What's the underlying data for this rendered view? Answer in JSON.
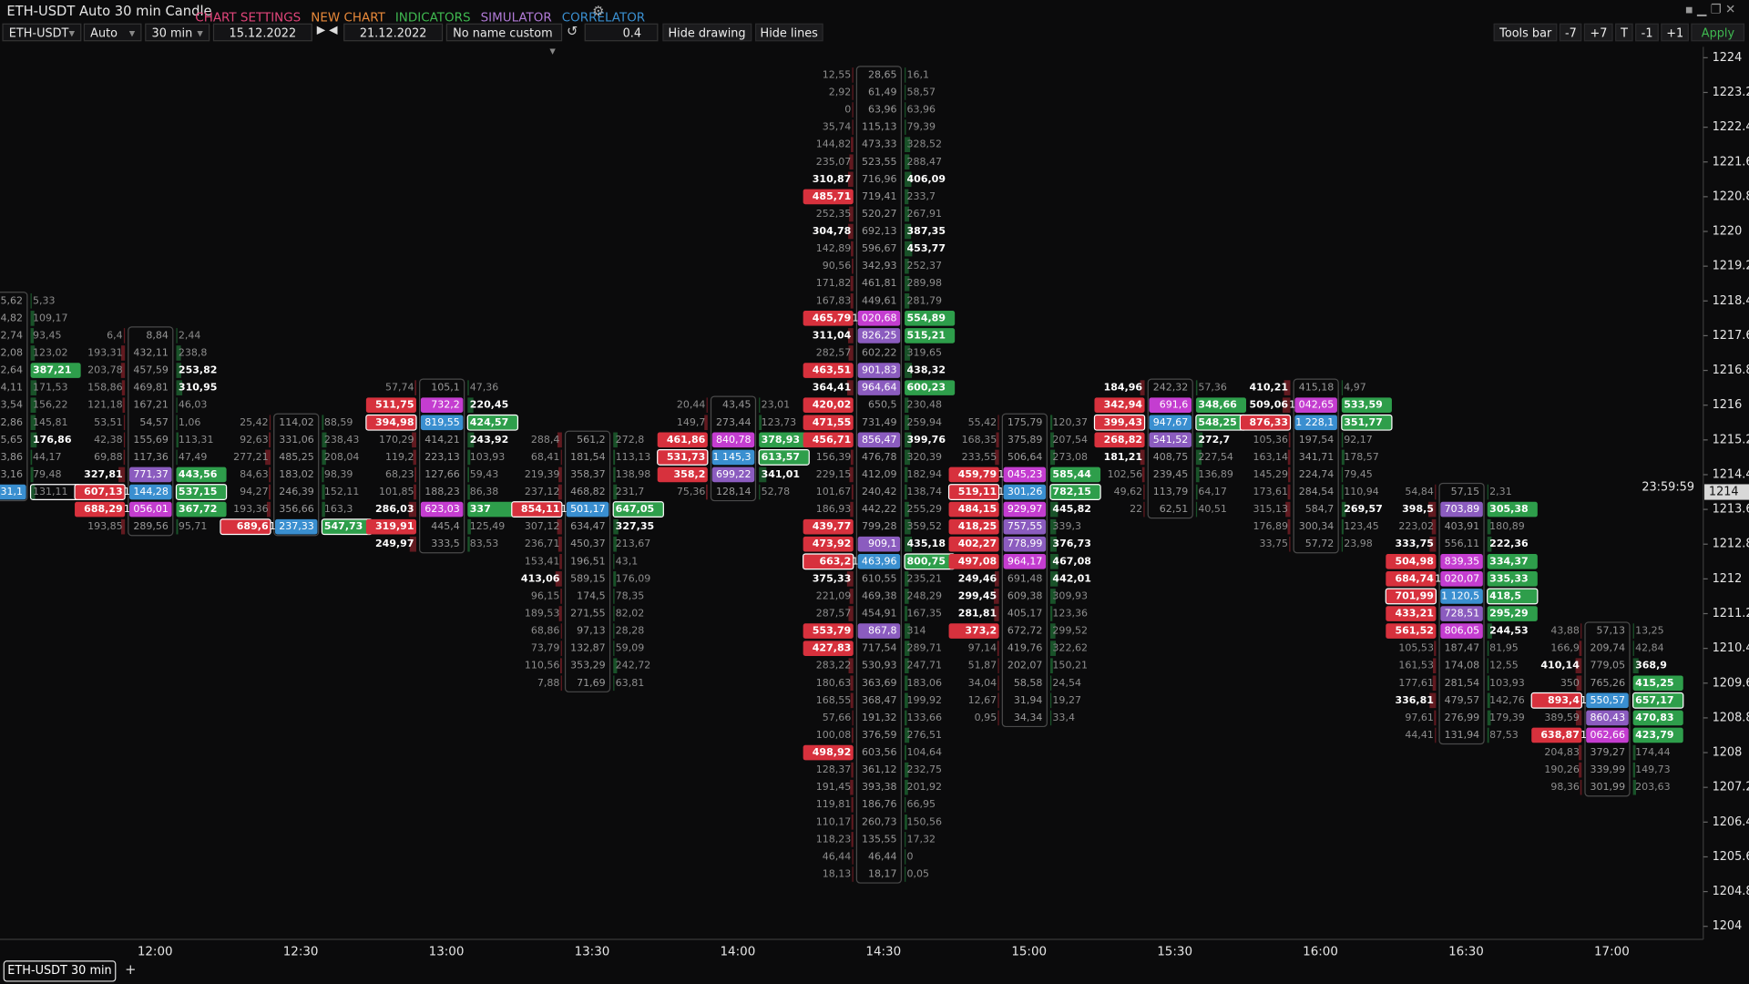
{
  "header": {
    "title": "ETH-USDT Auto 30 min Candle",
    "menu": [
      "CHART SETTINGS",
      "NEW CHART",
      "INDICATORS",
      "SIMULATOR",
      "CORRELATOR"
    ]
  },
  "toolbar": {
    "symbol": "ETH-USDT",
    "scale": "Auto",
    "period": "30 min",
    "from": "15.12.2022",
    "to": "21.12.2022",
    "template": "No name custom",
    "tick": 0.4,
    "buttons": [
      "Hide drawing",
      "Hide lines"
    ],
    "right_buttons": [
      "Tools bar",
      "-7",
      "+7",
      "T",
      "-1",
      "+1",
      "Apply"
    ]
  },
  "chart": {
    "ylim": [
      1203.7,
      1224.25
    ],
    "yticks": [
      1224,
      1223.2,
      1222.4,
      1221.6,
      1220.8,
      1220,
      1219.2,
      1218.4,
      1217.6,
      1216.8,
      1216,
      1215.2,
      1214.4,
      1213.6,
      1212.8,
      1212,
      1211.2,
      1210.4,
      1209.6,
      1208.8,
      1208,
      1207.2,
      1206.4,
      1205.6,
      1204.8,
      1204
    ],
    "time_labels": [
      "12:00",
      "12:30",
      "13:00",
      "13:30",
      "14:00",
      "14:30",
      "15:00",
      "15:30",
      "16:00",
      "16:30",
      "17:00"
    ],
    "last_price": 1214,
    "countdown": "23:59:59",
    "clusters": [
      {
        "top": 1218.4,
        "rows": [
          [
            null,
            "5,62",
            "5,33"
          ],
          [
            null,
            "4,82",
            "109,17"
          ],
          [
            null,
            "2,74",
            "93,45"
          ],
          [
            null,
            "2,08",
            "123,02"
          ],
          [
            null,
            "2,64",
            "387,21"
          ],
          [
            null,
            "4,11",
            "171,53"
          ],
          [
            null,
            "3,54",
            "156,22"
          ],
          [
            null,
            "2,86",
            "145,81"
          ],
          [
            null,
            "5,65",
            "176,86"
          ],
          [
            null,
            "3,86",
            "44,17"
          ],
          [
            null,
            "3,16",
            "79,48"
          ],
          [
            null,
            "31,1",
            "131,11"
          ]
        ]
      },
      {
        "top": 1217.6,
        "rows": [
          [
            "6,4",
            "8,84",
            "2,44"
          ],
          [
            "193,31",
            "432,11",
            "238,8"
          ],
          [
            "203,78",
            "457,59",
            "253,82"
          ],
          [
            "158,86",
            "469,81",
            "310,95"
          ],
          [
            "121,18",
            "167,21",
            "46,03"
          ],
          [
            "53,51",
            "54,57",
            "1,06"
          ],
          [
            "42,38",
            "155,69",
            "113,31"
          ],
          [
            "69,88",
            "117,36",
            "47,49"
          ],
          [
            "327,81",
            "771,37",
            "443,56"
          ],
          [
            "607,13",
            "1 144,28",
            "537,15"
          ],
          [
            "688,29",
            "1 056,01",
            "367,72"
          ],
          [
            "193,85",
            "289,56",
            "95,71"
          ]
        ]
      },
      {
        "top": 1215.6,
        "rows": [
          [
            "25,42",
            "114,02",
            "88,59"
          ],
          [
            "92,63",
            "331,06",
            "238,43"
          ],
          [
            "277,21",
            "485,25",
            "208,04"
          ],
          [
            "84,63",
            "183,02",
            "98,39"
          ],
          [
            "94,27",
            "246,39",
            "152,11"
          ],
          [
            "193,36",
            "356,66",
            "163,3"
          ],
          [
            "689,6",
            "1 237,33",
            "547,73"
          ]
        ]
      },
      {
        "top": 1216.4,
        "rows": [
          [
            "57,74",
            "105,1",
            "47,36"
          ],
          [
            "511,75",
            "732,2",
            "220,45"
          ],
          [
            "394,98",
            "819,55",
            "424,57"
          ],
          [
            "170,29",
            "414,21",
            "243,92"
          ],
          [
            "119,2",
            "223,13",
            "103,93"
          ],
          [
            "68,23",
            "127,66",
            "59,43"
          ],
          [
            "101,85",
            "188,23",
            "86,38"
          ],
          [
            "286,03",
            "623,03",
            "337"
          ],
          [
            "319,91",
            "445,4",
            "125,49"
          ],
          [
            "249,97",
            "333,5",
            "83,53"
          ]
        ]
      },
      {
        "top": 1215.2,
        "rows": [
          [
            "288,4",
            "561,2",
            "272,8"
          ],
          [
            "68,41",
            "181,54",
            "113,13"
          ],
          [
            "219,39",
            "358,37",
            "138,98"
          ],
          [
            "237,12",
            "468,82",
            "231,7"
          ],
          [
            "854,11",
            "1 501,17",
            "647,05"
          ],
          [
            "307,12",
            "634,47",
            "327,35"
          ],
          [
            "236,71",
            "450,37",
            "213,67"
          ],
          [
            "153,41",
            "196,51",
            "43,1"
          ],
          [
            "413,06",
            "589,15",
            "176,09"
          ],
          [
            "96,15",
            "174,5",
            "78,35"
          ],
          [
            "189,53",
            "271,55",
            "82,02"
          ],
          [
            "68,86",
            "97,13",
            "28,28"
          ],
          [
            "73,79",
            "132,87",
            "59,09"
          ],
          [
            "110,56",
            "353,29",
            "242,72"
          ],
          [
            "7,88",
            "71,69",
            "63,81"
          ]
        ]
      },
      {
        "top": 1216,
        "rows": [
          [
            "20,44",
            "43,45",
            "23,01"
          ],
          [
            "149,7",
            "273,44",
            "123,73"
          ],
          [
            "461,86",
            "840,78",
            "378,93"
          ],
          [
            "531,73",
            "1 145,3",
            "613,57"
          ],
          [
            "358,2",
            "699,22",
            "341,01"
          ],
          [
            "75,36",
            "128,14",
            "52,78"
          ]
        ]
      },
      {
        "top": 1223.6,
        "rows": [
          [
            "12,55",
            "28,65",
            "16,1"
          ],
          [
            "2,92",
            "61,49",
            "58,57"
          ],
          [
            "0",
            "63,96",
            "63,96"
          ],
          [
            "35,74",
            "115,13",
            "79,39"
          ],
          [
            "144,82",
            "473,33",
            "328,52"
          ],
          [
            "235,07",
            "523,55",
            "288,47"
          ],
          [
            "310,87",
            "716,96",
            "406,09"
          ],
          [
            "485,71",
            "719,41",
            "233,7"
          ],
          [
            "252,35",
            "520,27",
            "267,91"
          ],
          [
            "304,78",
            "692,13",
            "387,35"
          ],
          [
            "142,89",
            "596,67",
            "453,77"
          ],
          [
            "90,56",
            "342,93",
            "252,37"
          ],
          [
            "171,82",
            "461,81",
            "289,98"
          ],
          [
            "167,83",
            "449,61",
            "281,79"
          ],
          [
            "465,79",
            "1 020,68",
            "554,89"
          ],
          [
            "311,04",
            "826,25",
            "515,21"
          ],
          [
            "282,57",
            "602,22",
            "319,65"
          ],
          [
            "463,51",
            "901,83",
            "438,32"
          ],
          [
            "364,41",
            "964,64",
            "600,23"
          ],
          [
            "420,02",
            "650,5",
            "230,48"
          ],
          [
            "471,55",
            "731,49",
            "259,94"
          ],
          [
            "456,71",
            "856,47",
            "399,76"
          ],
          [
            "156,39",
            "476,78",
            "320,39"
          ],
          [
            "229,15",
            "412,09",
            "182,94"
          ],
          [
            "101,67",
            "240,42",
            "138,74"
          ],
          [
            "186,93",
            "442,22",
            "255,29"
          ],
          [
            "439,77",
            "799,28",
            "359,52"
          ],
          [
            "473,92",
            "909,1",
            "435,18"
          ],
          [
            "663,2",
            "1 463,96",
            "800,75"
          ],
          [
            "375,33",
            "610,55",
            "235,21"
          ],
          [
            "221,09",
            "469,38",
            "248,29"
          ],
          [
            "287,57",
            "454,91",
            "167,35"
          ],
          [
            "553,79",
            "867,8",
            "314"
          ],
          [
            "427,83",
            "717,54",
            "289,71"
          ],
          [
            "283,22",
            "530,93",
            "247,71"
          ],
          [
            "180,63",
            "363,69",
            "183,06"
          ],
          [
            "168,55",
            "368,47",
            "199,92"
          ],
          [
            "57,66",
            "191,32",
            "133,66"
          ],
          [
            "100,08",
            "376,59",
            "276,51"
          ],
          [
            "498,92",
            "603,56",
            "104,64"
          ],
          [
            "128,37",
            "361,12",
            "232,75"
          ],
          [
            "191,45",
            "393,38",
            "201,92"
          ],
          [
            "119,81",
            "186,76",
            "66,95"
          ],
          [
            "110,17",
            "260,73",
            "150,56"
          ],
          [
            "118,23",
            "135,55",
            "17,32"
          ],
          [
            "46,44",
            "46,44",
            "0"
          ],
          [
            "18,13",
            "18,17",
            "0,05"
          ]
        ]
      },
      {
        "top": 1215.6,
        "rows": [
          [
            "55,42",
            "175,79",
            "120,37"
          ],
          [
            "168,35",
            "375,89",
            "207,54"
          ],
          [
            "233,55",
            "506,64",
            "273,08"
          ],
          [
            "459,79",
            "1 045,23",
            "585,44"
          ],
          [
            "519,11",
            "1 301,26",
            "782,15"
          ],
          [
            "484,15",
            "929,97",
            "445,82"
          ],
          [
            "418,25",
            "757,55",
            "339,3"
          ],
          [
            "402,27",
            "778,99",
            "376,73"
          ],
          [
            "497,08",
            "964,17",
            "467,08"
          ],
          [
            "249,46",
            "691,48",
            "442,01"
          ],
          [
            "299,45",
            "609,38",
            "309,93"
          ],
          [
            "281,81",
            "405,17",
            "123,36"
          ],
          [
            "373,2",
            "672,72",
            "299,52"
          ],
          [
            "97,14",
            "419,76",
            "322,62"
          ],
          [
            "51,87",
            "202,07",
            "150,21"
          ],
          [
            "34,04",
            "58,58",
            "24,54"
          ],
          [
            "12,67",
            "31,94",
            "19,27"
          ],
          [
            "0,95",
            "34,34",
            "33,4"
          ]
        ]
      },
      {
        "top": 1216.4,
        "rows": [
          [
            "184,96",
            "242,32",
            "57,36"
          ],
          [
            "342,94",
            "691,6",
            "348,66"
          ],
          [
            "399,43",
            "947,67",
            "548,25"
          ],
          [
            "268,82",
            "541,52",
            "272,7"
          ],
          [
            "181,21",
            "408,75",
            "227,54"
          ],
          [
            "102,56",
            "239,45",
            "136,89"
          ],
          [
            "49,62",
            "113,79",
            "64,17"
          ],
          [
            "22",
            "62,51",
            "40,51"
          ]
        ]
      },
      {
        "top": 1216.4,
        "rows": [
          [
            "410,21",
            "415,18",
            "4,97"
          ],
          [
            "509,06",
            "1 042,65",
            "533,59"
          ],
          [
            "876,33",
            "1 228,1",
            "351,77"
          ],
          [
            "105,36",
            "197,54",
            "92,17"
          ],
          [
            "163,14",
            "341,71",
            "178,57"
          ],
          [
            "145,29",
            "224,74",
            "79,45"
          ],
          [
            "173,61",
            "284,54",
            "110,94"
          ],
          [
            "315,13",
            "584,7",
            "269,57"
          ],
          [
            "176,89",
            "300,34",
            "123,45"
          ],
          [
            "33,75",
            "57,72",
            "23,98"
          ]
        ]
      },
      {
        "top": 1214,
        "rows": [
          [
            "54,84",
            "57,15",
            "2,31"
          ],
          [
            "398,5",
            "703,89",
            "305,38"
          ],
          [
            "223,02",
            "403,91",
            "180,89"
          ],
          [
            "333,75",
            "556,11",
            "222,36"
          ],
          [
            "504,98",
            "839,35",
            "334,37"
          ],
          [
            "684,74",
            "1 020,07",
            "335,33"
          ],
          [
            "701,99",
            "1 120,5",
            "418,5"
          ],
          [
            "433,21",
            "728,51",
            "295,29"
          ],
          [
            "561,52",
            "806,05",
            "244,53"
          ],
          [
            "105,53",
            "187,47",
            "81,95"
          ],
          [
            "161,53",
            "174,08",
            "12,55"
          ],
          [
            "177,61",
            "281,54",
            "103,93"
          ],
          [
            "336,81",
            "479,57",
            "142,76"
          ],
          [
            "97,61",
            "276,99",
            "179,39"
          ],
          [
            "44,41",
            "131,94",
            "87,53"
          ]
        ]
      },
      {
        "top": 1210.8,
        "rows": [
          [
            "43,88",
            "57,13",
            "13,25"
          ],
          [
            "166,9",
            "209,74",
            "42,84"
          ],
          [
            "410,14",
            "779,05",
            "368,9"
          ],
          [
            "350",
            "765,26",
            "415,25"
          ],
          [
            "893,4",
            "1 550,57",
            "657,17"
          ],
          [
            "389,59",
            "860,43",
            "470,83"
          ],
          [
            "638,87",
            "1 062,66",
            "423,79"
          ],
          [
            "204,83",
            "379,27",
            "174,44"
          ],
          [
            "190,26",
            "339,99",
            "149,73"
          ],
          [
            "98,36",
            "301,99",
            "203,63"
          ]
        ]
      }
    ]
  },
  "footer": {
    "tab": "ETH-USDT 30 min",
    "add": "+"
  }
}
